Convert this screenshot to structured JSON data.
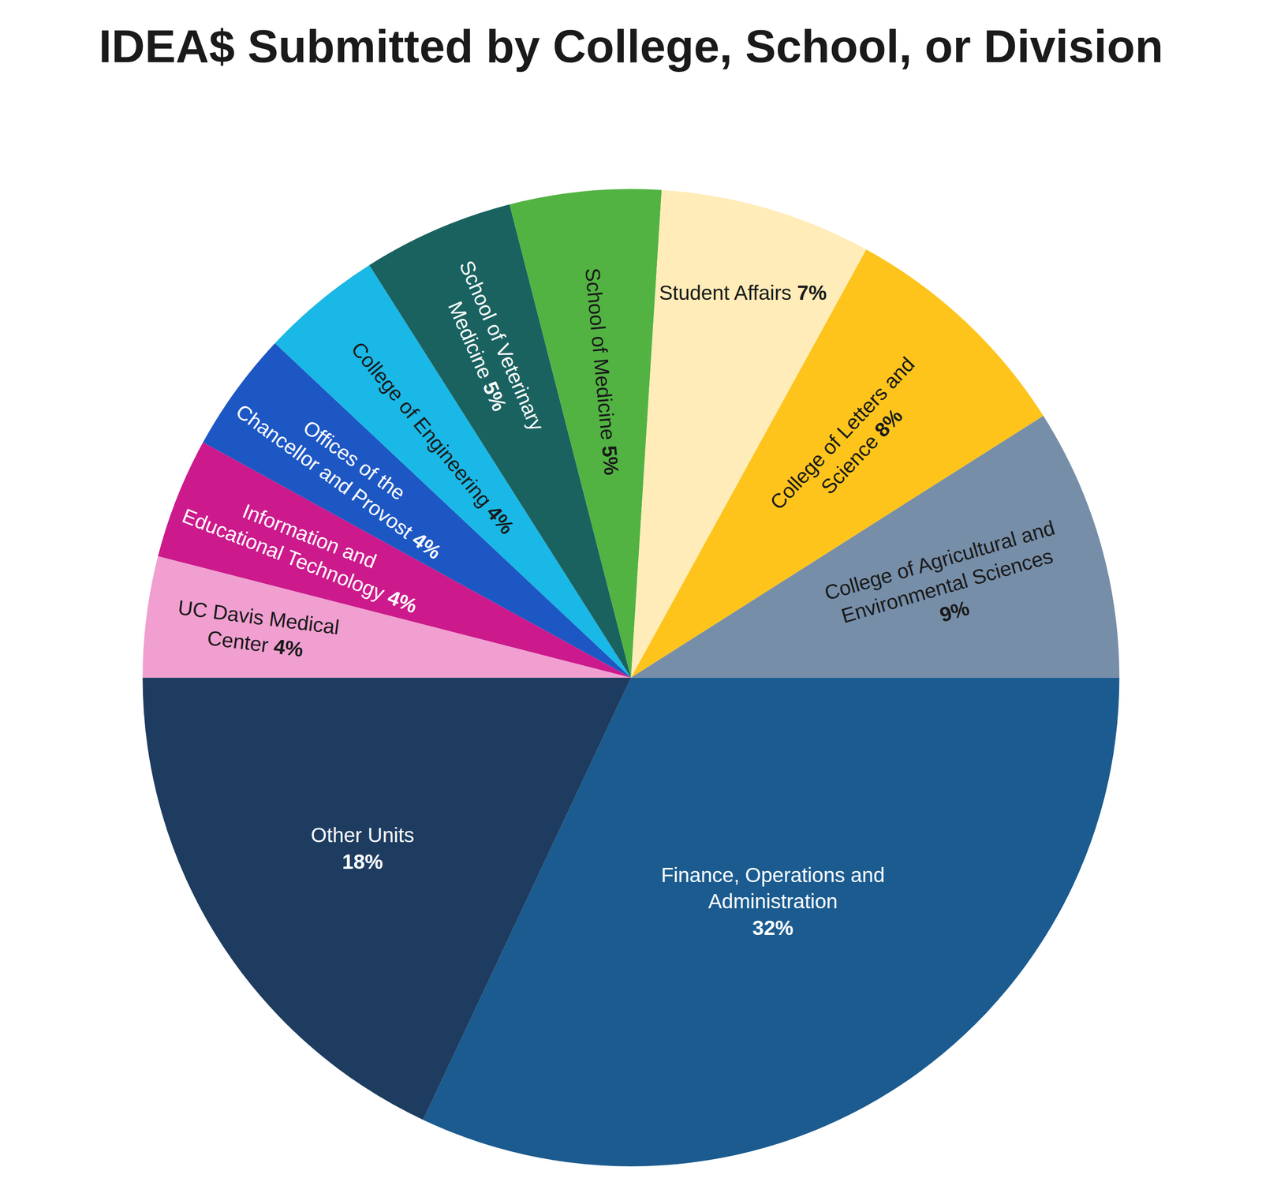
{
  "chart_data": {
    "type": "pie",
    "title": "IDEA$ Submitted by College, School, or Division",
    "categories": [
      "Finance, Operations and Administration",
      "Other Units",
      "UC Davis Medical Center",
      "Information and Educational Technology",
      "Offices of the Chancellor and Provost",
      "College of Engineering",
      "School of Veterinary Medicine",
      "School of Medicine",
      "Student Affairs",
      "College of Letters and Science",
      "College of Agricultural and Environmental Sciences"
    ],
    "values": [
      32,
      18,
      4,
      4,
      4,
      4,
      5,
      5,
      7,
      8,
      9
    ],
    "value_labels": [
      "32%",
      "18%",
      "4%",
      "4%",
      "4%",
      "4%",
      "5%",
      "5%",
      "7%",
      "8%",
      "9%"
    ],
    "colors": [
      "#1b5b8f",
      "#1d3c60",
      "#f09fd0",
      "#cc1a8c",
      "#1d57c4",
      "#1ab8e6",
      "#1a6260",
      "#52b342",
      "#ffecb8",
      "#fec41c",
      "#768ea8"
    ],
    "data_labels": true,
    "legend": false
  }
}
